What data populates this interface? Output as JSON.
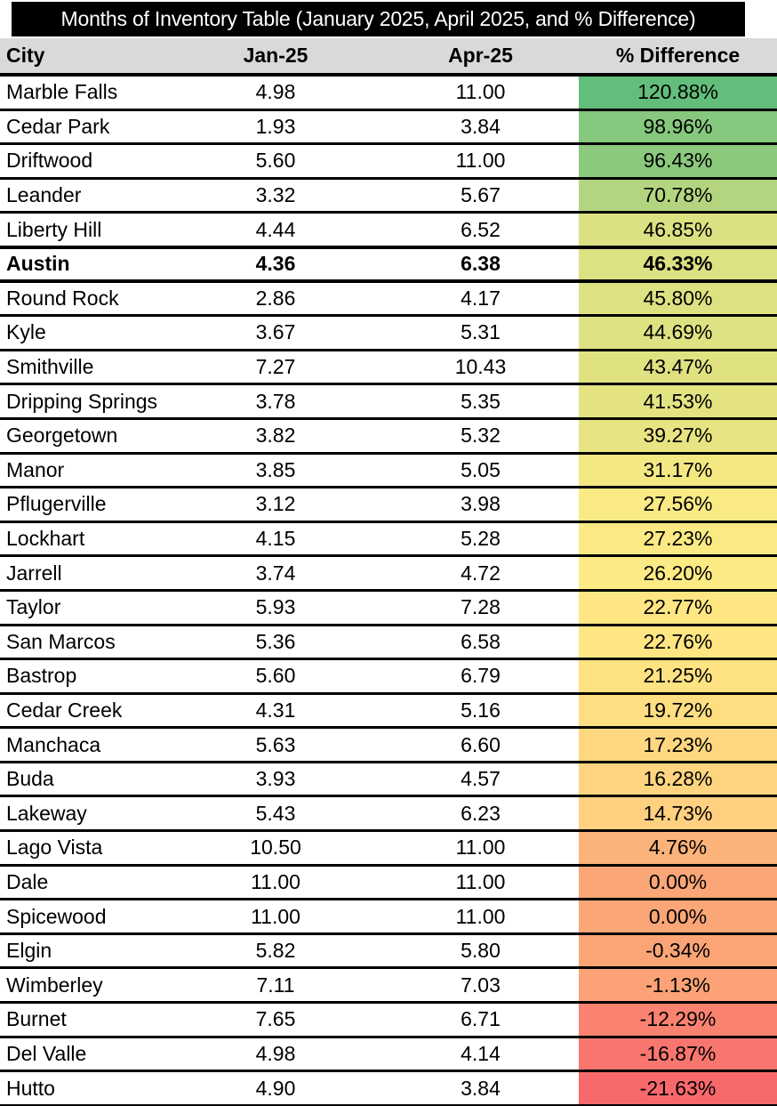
{
  "colors": {
    "title_bg": "#000000",
    "title_text": "#ffffff",
    "header_bg": "#d9d9d9",
    "row_bg": "#ffffff",
    "border": "#000000",
    "scale_max_green": "#63BE7B",
    "scale_mid_yellow": "#FFEB84",
    "scale_min_red": "#F8696B"
  },
  "chart_data": {
    "type": "table",
    "title": "Months of Inventory Table (January 2025, April 2025, and % Difference)",
    "columns": [
      "City",
      "Jan-25",
      "Apr-25",
      "% Difference"
    ],
    "highlighted_row": "Austin",
    "color_scale_column": "% Difference",
    "rows": [
      {
        "city": "Marble Falls",
        "jan_25": "4.98",
        "apr_25": "11.00",
        "pct_difference": "120.88%",
        "cell_color": "#63BE7B",
        "bold": false
      },
      {
        "city": "Cedar Park",
        "jan_25": "1.93",
        "apr_25": "3.84",
        "pct_difference": "98.96%",
        "cell_color": "#86C87D",
        "bold": false
      },
      {
        "city": "Driftwood",
        "jan_25": "5.60",
        "apr_25": "11.00",
        "pct_difference": "96.43%",
        "cell_color": "#8BC97D",
        "bold": false
      },
      {
        "city": "Leander",
        "jan_25": "3.32",
        "apr_25": "5.67",
        "pct_difference": "70.78%",
        "cell_color": "#B4D580",
        "bold": false
      },
      {
        "city": "Liberty Hill",
        "jan_25": "4.44",
        "apr_25": "6.52",
        "pct_difference": "46.85%",
        "cell_color": "#DBE182",
        "bold": false
      },
      {
        "city": "Austin",
        "jan_25": "4.36",
        "apr_25": "6.38",
        "pct_difference": "46.33%",
        "cell_color": "#DCE182",
        "bold": true
      },
      {
        "city": "Round Rock",
        "jan_25": "2.86",
        "apr_25": "4.17",
        "pct_difference": "45.80%",
        "cell_color": "#DDE182",
        "bold": false
      },
      {
        "city": "Kyle",
        "jan_25": "3.67",
        "apr_25": "5.31",
        "pct_difference": "44.69%",
        "cell_color": "#DEE282",
        "bold": false
      },
      {
        "city": "Smithville",
        "jan_25": "7.27",
        "apr_25": "10.43",
        "pct_difference": "43.47%",
        "cell_color": "#E0E282",
        "bold": false
      },
      {
        "city": "Dripping Springs",
        "jan_25": "3.78",
        "apr_25": "5.35",
        "pct_difference": "41.53%",
        "cell_color": "#E3E382",
        "bold": false
      },
      {
        "city": "Georgetown",
        "jan_25": "3.82",
        "apr_25": "5.32",
        "pct_difference": "39.27%",
        "cell_color": "#E7E483",
        "bold": false
      },
      {
        "city": "Manor",
        "jan_25": "3.85",
        "apr_25": "5.05",
        "pct_difference": "31.17%",
        "cell_color": "#F4E883",
        "bold": false
      },
      {
        "city": "Pflugerville",
        "jan_25": "3.12",
        "apr_25": "3.98",
        "pct_difference": "27.56%",
        "cell_color": "#FAEA84",
        "bold": false
      },
      {
        "city": "Lockhart",
        "jan_25": "4.15",
        "apr_25": "5.28",
        "pct_difference": "27.23%",
        "cell_color": "#FBEA84",
        "bold": false
      },
      {
        "city": "Jarrell",
        "jan_25": "3.74",
        "apr_25": "4.72",
        "pct_difference": "26.20%",
        "cell_color": "#FCEA84",
        "bold": false
      },
      {
        "city": "Taylor",
        "jan_25": "5.93",
        "apr_25": "7.28",
        "pct_difference": "22.77%",
        "cell_color": "#FFE683",
        "bold": false
      },
      {
        "city": "San Marcos",
        "jan_25": "5.36",
        "apr_25": "6.58",
        "pct_difference": "22.76%",
        "cell_color": "#FFE683",
        "bold": false
      },
      {
        "city": "Bastrop",
        "jan_25": "5.60",
        "apr_25": "6.79",
        "pct_difference": "21.25%",
        "cell_color": "#FFE282",
        "bold": false
      },
      {
        "city": "Cedar Creek",
        "jan_25": "4.31",
        "apr_25": "5.16",
        "pct_difference": "19.72%",
        "cell_color": "#FEDE81",
        "bold": false
      },
      {
        "city": "Manchaca",
        "jan_25": "5.63",
        "apr_25": "6.60",
        "pct_difference": "17.23%",
        "cell_color": "#FED780",
        "bold": false
      },
      {
        "city": "Buda",
        "jan_25": "3.93",
        "apr_25": "4.57",
        "pct_difference": "16.28%",
        "cell_color": "#FED480",
        "bold": false
      },
      {
        "city": "Lakeway",
        "jan_25": "5.43",
        "apr_25": "6.23",
        "pct_difference": "14.73%",
        "cell_color": "#FED07F",
        "bold": false
      },
      {
        "city": "Lago Vista",
        "jan_25": "10.50",
        "apr_25": "11.00",
        "pct_difference": "4.76%",
        "cell_color": "#FCB379",
        "bold": false
      },
      {
        "city": "Dale",
        "jan_25": "11.00",
        "apr_25": "11.00",
        "pct_difference": "0.00%",
        "cell_color": "#FBA677",
        "bold": false
      },
      {
        "city": "Spicewood",
        "jan_25": "11.00",
        "apr_25": "11.00",
        "pct_difference": "0.00%",
        "cell_color": "#FBA677",
        "bold": false
      },
      {
        "city": "Elgin",
        "jan_25": "5.82",
        "apr_25": "5.80",
        "pct_difference": "-0.34%",
        "cell_color": "#FBA577",
        "bold": false
      },
      {
        "city": "Wimberley",
        "jan_25": "7.11",
        "apr_25": "7.03",
        "pct_difference": "-1.13%",
        "cell_color": "#FBA376",
        "bold": false
      },
      {
        "city": "Burnet",
        "jan_25": "7.65",
        "apr_25": "6.71",
        "pct_difference": "-12.29%",
        "cell_color": "#F98370",
        "bold": false
      },
      {
        "city": "Del Valle",
        "jan_25": "4.98",
        "apr_25": "4.14",
        "pct_difference": "-16.87%",
        "cell_color": "#F9766E",
        "bold": false
      },
      {
        "city": "Hutto",
        "jan_25": "4.90",
        "apr_25": "3.84",
        "pct_difference": "-21.63%",
        "cell_color": "#F8696B",
        "bold": false
      }
    ]
  }
}
